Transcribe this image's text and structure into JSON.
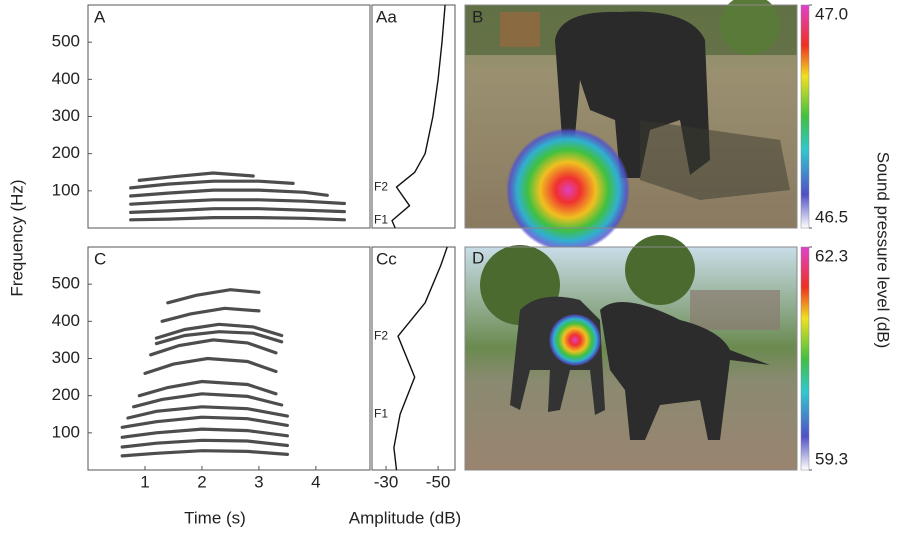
{
  "figure": {
    "ylabel": "Frequency (Hz)",
    "xlabel_time": "Time (s)",
    "xlabel_amplitude": "Amplitude (dB)",
    "colorbar_label": "Sound pressure level (dB)",
    "photo_labels": [
      "B",
      "D"
    ]
  },
  "chart_data": [
    {
      "type": "spectrogram",
      "label": "A",
      "xlim": [
        0,
        4.95
      ],
      "ylim": [
        0,
        600
      ],
      "yticks": [
        100,
        200,
        300,
        400,
        500
      ],
      "color": "#111111",
      "harmonics": [
        {
          "x": [
            0.75,
            1.4,
            2.2,
            3.0,
            3.8,
            4.5
          ],
          "values": [
            22,
            24,
            28,
            28,
            26,
            22
          ]
        },
        {
          "x": [
            0.75,
            1.4,
            2.2,
            3.0,
            3.8,
            4.5
          ],
          "values": [
            42,
            46,
            52,
            52,
            48,
            44
          ]
        },
        {
          "x": [
            0.75,
            1.4,
            2.2,
            3.0,
            3.8,
            4.5
          ],
          "values": [
            64,
            70,
            76,
            76,
            72,
            66
          ]
        },
        {
          "x": [
            0.75,
            1.4,
            2.2,
            3.0,
            3.8,
            4.2
          ],
          "values": [
            86,
            94,
            102,
            102,
            96,
            88
          ]
        },
        {
          "x": [
            0.75,
            1.4,
            2.2,
            3.0,
            3.6
          ],
          "values": [
            108,
            118,
            126,
            126,
            120
          ]
        },
        {
          "x": [
            0.9,
            1.5,
            2.2,
            2.9
          ],
          "values": [
            128,
            138,
            148,
            140
          ]
        }
      ]
    },
    {
      "type": "spectrum",
      "label": "Aa",
      "xlim": [
        -24.6,
        -56.5
      ],
      "ylim": [
        0,
        600
      ],
      "y": [
        0,
        20,
        60,
        110,
        150,
        200,
        300,
        400,
        500,
        600
      ],
      "values": [
        -33.5,
        -32.3,
        -39,
        -34,
        -41,
        -45,
        -48,
        -50,
        -51.5,
        -52.7
      ],
      "annotations": [
        {
          "text": "F1",
          "y": 20
        },
        {
          "text": "F2",
          "y": 110
        }
      ]
    },
    {
      "type": "spectrogram",
      "label": "C",
      "xlim": [
        0,
        4.95
      ],
      "ylim": [
        0,
        600
      ],
      "yticks": [
        100,
        200,
        300,
        400,
        500
      ],
      "xticks": [
        1,
        2,
        3,
        4
      ],
      "color": "#111111",
      "harmonics": [
        {
          "x": [
            0.6,
            1.2,
            2.0,
            2.8,
            3.5
          ],
          "values": [
            38,
            45,
            52,
            50,
            42
          ]
        },
        {
          "x": [
            0.6,
            1.2,
            2.0,
            2.8,
            3.5
          ],
          "values": [
            62,
            72,
            80,
            78,
            66
          ]
        },
        {
          "x": [
            0.6,
            1.2,
            2.0,
            2.8,
            3.5
          ],
          "values": [
            88,
            100,
            110,
            106,
            92
          ]
        },
        {
          "x": [
            0.6,
            1.2,
            2.0,
            2.8,
            3.5
          ],
          "values": [
            115,
            130,
            142,
            138,
            120
          ]
        },
        {
          "x": [
            0.7,
            1.2,
            2.0,
            2.8,
            3.5
          ],
          "values": [
            140,
            158,
            170,
            165,
            145
          ]
        },
        {
          "x": [
            0.8,
            1.3,
            2.0,
            2.8,
            3.4
          ],
          "values": [
            170,
            190,
            205,
            198,
            175
          ]
        },
        {
          "x": [
            0.9,
            1.4,
            2.0,
            2.8,
            3.3
          ],
          "values": [
            200,
            222,
            238,
            230,
            205
          ]
        },
        {
          "x": [
            1.0,
            1.5,
            2.1,
            2.8,
            3.3
          ],
          "values": [
            260,
            285,
            300,
            292,
            265
          ]
        },
        {
          "x": [
            1.1,
            1.6,
            2.2,
            2.8,
            3.3
          ],
          "values": [
            310,
            335,
            350,
            342,
            315
          ]
        },
        {
          "x": [
            1.2,
            1.7,
            2.3,
            2.9,
            3.4
          ],
          "values": [
            340,
            362,
            372,
            368,
            345
          ]
        },
        {
          "x": [
            1.2,
            1.7,
            2.3,
            2.9,
            3.4
          ],
          "values": [
            355,
            378,
            392,
            385,
            362
          ]
        },
        {
          "x": [
            1.3,
            1.8,
            2.4,
            3.0
          ],
          "values": [
            400,
            420,
            435,
            428
          ]
        },
        {
          "x": [
            1.4,
            1.9,
            2.5,
            3.0
          ],
          "values": [
            450,
            470,
            485,
            478
          ]
        }
      ]
    },
    {
      "type": "spectrum",
      "label": "Cc",
      "xlim": [
        -24.6,
        -56.5
      ],
      "ylim": [
        0,
        600
      ],
      "xticks": [
        -30,
        -50
      ],
      "y": [
        0,
        60,
        150,
        250,
        360,
        450,
        550,
        600
      ],
      "values": [
        -34,
        -33,
        -35.4,
        -41,
        -34.6,
        -45,
        -51,
        -53.5
      ],
      "annotations": [
        {
          "text": "F1",
          "y": 150
        },
        {
          "text": "F2",
          "y": 360
        }
      ]
    },
    {
      "type": "colorbar",
      "zlim": [
        46.5,
        47.0
      ],
      "zticks": [
        {
          "value": 47.0,
          "label": "47.0"
        },
        {
          "value": 46.5,
          "label": "46.5"
        }
      ]
    },
    {
      "type": "colorbar",
      "zlim": [
        59.3,
        62.3
      ],
      "zticks": [
        {
          "value": 62.3,
          "label": "62.3"
        },
        {
          "value": 59.3,
          "label": "59.3"
        }
      ]
    }
  ]
}
